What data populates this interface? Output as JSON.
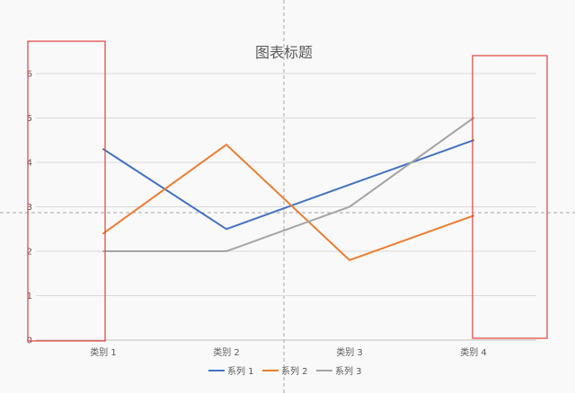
{
  "chart_data": {
    "type": "line",
    "title": "图表标题",
    "categories": [
      "类别 1",
      "类别 2",
      "类别 3",
      "类别 4"
    ],
    "series": [
      {
        "name": "系列 1",
        "values": [
          4.3,
          2.5,
          3.5,
          4.5
        ],
        "color": "#4472c4"
      },
      {
        "name": "系列 2",
        "values": [
          2.4,
          4.4,
          1.8,
          2.8
        ],
        "color": "#ed7d31"
      },
      {
        "name": "系列 3",
        "values": [
          2.0,
          2.0,
          3.0,
          5.0
        ],
        "color": "#a5a5a5"
      }
    ],
    "ylim": [
      0,
      6
    ],
    "yticks": [
      "0",
      "1",
      "2",
      "3",
      "4",
      "5",
      "6"
    ],
    "grid": true,
    "legend": "bottom"
  },
  "highlight_color": "#e0413a"
}
